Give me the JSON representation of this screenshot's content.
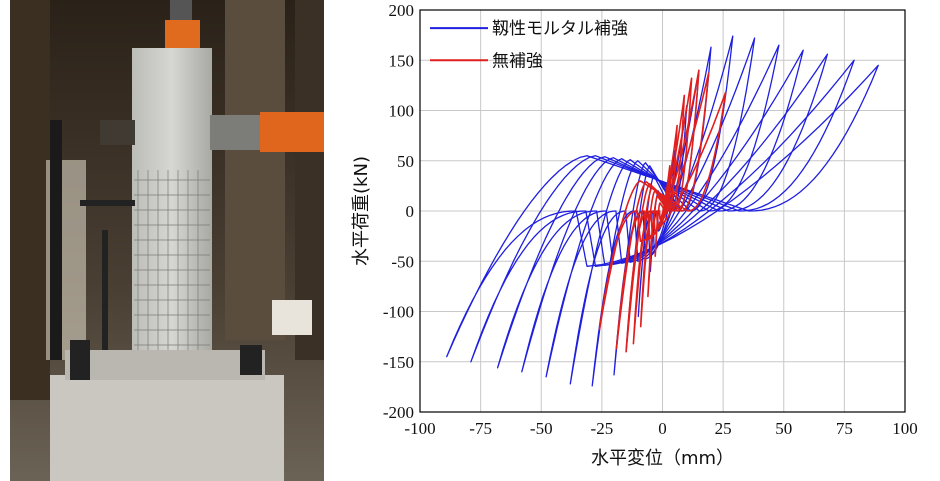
{
  "photo": {
    "subject": "test-specimen-photo"
  },
  "chart_data": {
    "type": "line",
    "title": "",
    "xlabel": "水平変位（mm）",
    "ylabel": "水平荷重(kN)",
    "xlim": [
      -100,
      100
    ],
    "ylim": [
      -200,
      200
    ],
    "xticks": [
      -100,
      -75,
      -50,
      -25,
      0,
      25,
      50,
      75,
      100
    ],
    "yticks": [
      -200,
      -150,
      -100,
      -50,
      0,
      50,
      100,
      150,
      200
    ],
    "grid": true,
    "legend_position": "top-left",
    "series": [
      {
        "name": "靱性モルタル補強",
        "color": "#1f1fe0",
        "loops": [
          {
            "amp": 5,
            "peak": 60,
            "inter": 20
          },
          {
            "amp": 10,
            "peak": 105,
            "inter": 35
          },
          {
            "amp": 15,
            "peak": 140,
            "inter": 45
          },
          {
            "amp": 20,
            "peak": 163,
            "inter": 48
          },
          {
            "amp": 29,
            "peak": 174,
            "inter": 50
          },
          {
            "amp": 38,
            "peak": 172,
            "inter": 51
          },
          {
            "amp": 48,
            "peak": 165,
            "inter": 52
          },
          {
            "amp": 58,
            "peak": 160,
            "inter": 53
          },
          {
            "amp": 68,
            "peak": 156,
            "inter": 54
          },
          {
            "amp": 79,
            "peak": 150,
            "inter": 55
          },
          {
            "amp": 89,
            "peak": 145,
            "inter": 55
          }
        ]
      },
      {
        "name": "無補強",
        "color": "#e01f1f",
        "loops": [
          {
            "amp": 3,
            "peak": 45,
            "inter": 8
          },
          {
            "amp": 6,
            "peak": 85,
            "inter": 15
          },
          {
            "amp": 9,
            "peak": 115,
            "inter": 20
          },
          {
            "amp": 12,
            "peak": 132,
            "inter": 24
          },
          {
            "amp": 15,
            "peak": 140,
            "inter": 27
          },
          {
            "amp": 19,
            "peak": 137,
            "inter": 29
          },
          {
            "amp": 26,
            "peak": 118,
            "inter": 30
          }
        ]
      }
    ]
  }
}
